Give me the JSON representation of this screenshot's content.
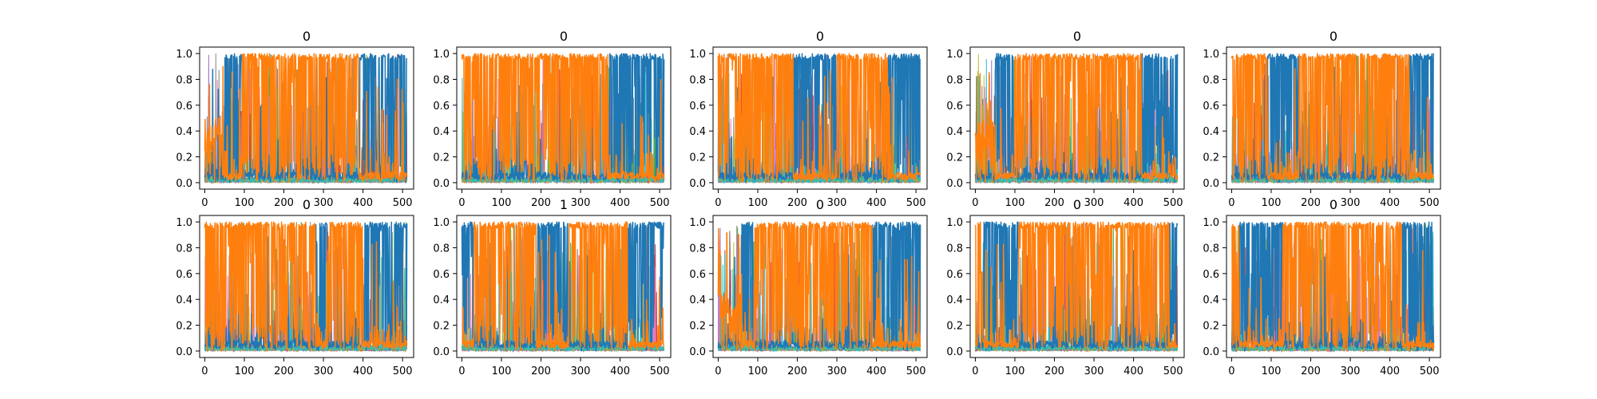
{
  "figure": {
    "background": "#ffffff",
    "axes_edge_color": "#000000"
  },
  "series_colors": [
    "#1f77b4",
    "#ff7f0e",
    "#2ca02c",
    "#d62728",
    "#9467bd",
    "#8c564b",
    "#e377c2",
    "#7f7f7f",
    "#bcbd22",
    "#17becf"
  ],
  "chart_data": [
    {
      "type": "line",
      "title": "0",
      "xlim": [
        -13,
        528
      ],
      "ylim": [
        -0.05,
        1.05
      ],
      "grid": false,
      "xticks": [
        "0",
        "100",
        "200",
        "300",
        "400",
        "500"
      ],
      "yticks": [
        "0.0",
        "0.2",
        "0.4",
        "0.6",
        "0.8",
        "1.0"
      ],
      "series": [
        {
          "color": "#1f77b4",
          "segments": [
            {
              "from": 50,
              "to": 95,
              "level": "high"
            },
            {
              "from": 390,
              "to": 512,
              "level": "high"
            }
          ]
        },
        {
          "color": "#ff7f0e",
          "segments": [
            {
              "from": 0,
              "to": 45,
              "level": "low-noisy"
            },
            {
              "from": 95,
              "to": 390,
              "level": "high"
            },
            {
              "from": 390,
              "to": 512,
              "level": "low"
            }
          ]
        }
      ]
    },
    {
      "type": "line",
      "title": "0",
      "xlim": [
        -13,
        528
      ],
      "ylim": [
        -0.05,
        1.05
      ],
      "grid": false,
      "xticks": [
        "0",
        "100",
        "200",
        "300",
        "400",
        "500"
      ],
      "yticks": [
        "0.0",
        "0.2",
        "0.4",
        "0.6",
        "0.8",
        "1.0"
      ],
      "series": [
        {
          "color": "#1f77b4",
          "segments": [
            {
              "from": 370,
              "to": 512,
              "level": "high"
            }
          ]
        },
        {
          "color": "#ff7f0e",
          "segments": [
            {
              "from": 0,
              "to": 370,
              "level": "high"
            },
            {
              "from": 370,
              "to": 512,
              "level": "low"
            }
          ]
        }
      ]
    },
    {
      "type": "line",
      "title": "0",
      "xlim": [
        -13,
        528
      ],
      "ylim": [
        -0.05,
        1.05
      ],
      "grid": false,
      "xticks": [
        "0",
        "100",
        "200",
        "300",
        "400",
        "500"
      ],
      "yticks": [
        "0.0",
        "0.2",
        "0.4",
        "0.6",
        "0.8",
        "1.0"
      ],
      "series": [
        {
          "color": "#1f77b4",
          "segments": [
            {
              "from": 190,
              "to": 300,
              "level": "high"
            },
            {
              "from": 430,
              "to": 512,
              "level": "high"
            }
          ]
        },
        {
          "color": "#ff7f0e",
          "segments": [
            {
              "from": 0,
              "to": 190,
              "level": "high"
            },
            {
              "from": 190,
              "to": 300,
              "level": "low"
            },
            {
              "from": 300,
              "to": 430,
              "level": "high"
            },
            {
              "from": 430,
              "to": 512,
              "level": "low"
            }
          ]
        }
      ]
    },
    {
      "type": "line",
      "title": "0",
      "xlim": [
        -13,
        528
      ],
      "ylim": [
        -0.05,
        1.05
      ],
      "grid": false,
      "xticks": [
        "0",
        "100",
        "200",
        "300",
        "400",
        "500"
      ],
      "yticks": [
        "0.0",
        "0.2",
        "0.4",
        "0.6",
        "0.8",
        "1.0"
      ],
      "series": [
        {
          "color": "#1f77b4",
          "segments": [
            {
              "from": 50,
              "to": 100,
              "level": "high"
            },
            {
              "from": 420,
              "to": 512,
              "level": "high"
            }
          ]
        },
        {
          "color": "#ff7f0e",
          "segments": [
            {
              "from": 0,
              "to": 50,
              "level": "low-noisy"
            },
            {
              "from": 100,
              "to": 420,
              "level": "high"
            },
            {
              "from": 420,
              "to": 512,
              "level": "low"
            }
          ]
        }
      ]
    },
    {
      "type": "line",
      "title": "0",
      "xlim": [
        -13,
        528
      ],
      "ylim": [
        -0.05,
        1.05
      ],
      "grid": false,
      "xticks": [
        "0",
        "100",
        "200",
        "300",
        "400",
        "500"
      ],
      "yticks": [
        "0.0",
        "0.2",
        "0.4",
        "0.6",
        "0.8",
        "1.0"
      ],
      "series": [
        {
          "color": "#1f77b4",
          "segments": [
            {
              "from": 90,
              "to": 170,
              "level": "high"
            },
            {
              "from": 450,
              "to": 512,
              "level": "high"
            }
          ]
        },
        {
          "color": "#ff7f0e",
          "segments": [
            {
              "from": 0,
              "to": 90,
              "level": "high"
            },
            {
              "from": 170,
              "to": 450,
              "level": "high"
            },
            {
              "from": 450,
              "to": 512,
              "level": "low"
            }
          ]
        }
      ]
    },
    {
      "type": "line",
      "title": "0",
      "xlim": [
        -13,
        528
      ],
      "ylim": [
        -0.05,
        1.05
      ],
      "grid": false,
      "xticks": [
        "0",
        "100",
        "200",
        "300",
        "400",
        "500"
      ],
      "yticks": [
        "0.0",
        "0.2",
        "0.4",
        "0.6",
        "0.8",
        "1.0"
      ],
      "series": [
        {
          "color": "#1f77b4",
          "segments": [
            {
              "from": 280,
              "to": 310,
              "level": "high"
            },
            {
              "from": 400,
              "to": 512,
              "level": "high"
            }
          ]
        },
        {
          "color": "#ff7f0e",
          "segments": [
            {
              "from": 0,
              "to": 280,
              "level": "high"
            },
            {
              "from": 310,
              "to": 400,
              "level": "high"
            },
            {
              "from": 400,
              "to": 512,
              "level": "low"
            }
          ]
        }
      ]
    },
    {
      "type": "line",
      "title": "1",
      "xlim": [
        -13,
        528
      ],
      "ylim": [
        -0.05,
        1.05
      ],
      "grid": false,
      "xticks": [
        "0",
        "100",
        "200",
        "300",
        "400",
        "500"
      ],
      "yticks": [
        "0.0",
        "0.2",
        "0.4",
        "0.6",
        "0.8",
        "1.0"
      ],
      "series": [
        {
          "color": "#1f77b4",
          "segments": [
            {
              "from": 0,
              "to": 30,
              "level": "high"
            },
            {
              "from": 190,
              "to": 270,
              "level": "high"
            },
            {
              "from": 420,
              "to": 512,
              "level": "high"
            }
          ]
        },
        {
          "color": "#ff7f0e",
          "segments": [
            {
              "from": 30,
              "to": 190,
              "level": "high"
            },
            {
              "from": 190,
              "to": 270,
              "level": "low"
            },
            {
              "from": 270,
              "to": 420,
              "level": "high"
            },
            {
              "from": 420,
              "to": 512,
              "level": "low"
            }
          ]
        }
      ]
    },
    {
      "type": "line",
      "title": "0",
      "xlim": [
        -13,
        528
      ],
      "ylim": [
        -0.05,
        1.05
      ],
      "grid": false,
      "xticks": [
        "0",
        "100",
        "200",
        "300",
        "400",
        "500"
      ],
      "yticks": [
        "0.0",
        "0.2",
        "0.4",
        "0.6",
        "0.8",
        "1.0"
      ],
      "series": [
        {
          "color": "#1f77b4",
          "segments": [
            {
              "from": 60,
              "to": 90,
              "level": "high"
            },
            {
              "from": 390,
              "to": 512,
              "level": "high"
            }
          ]
        },
        {
          "color": "#ff7f0e",
          "segments": [
            {
              "from": 0,
              "to": 60,
              "level": "low-noisy"
            },
            {
              "from": 90,
              "to": 390,
              "level": "high"
            },
            {
              "from": 390,
              "to": 512,
              "level": "low"
            }
          ]
        }
      ]
    },
    {
      "type": "line",
      "title": "0",
      "xlim": [
        -13,
        528
      ],
      "ylim": [
        -0.05,
        1.05
      ],
      "grid": false,
      "xticks": [
        "0",
        "100",
        "200",
        "300",
        "400",
        "500"
      ],
      "yticks": [
        "0.0",
        "0.2",
        "0.4",
        "0.6",
        "0.8",
        "1.0"
      ],
      "series": [
        {
          "color": "#1f77b4",
          "segments": [
            {
              "from": 20,
              "to": 110,
              "level": "high"
            },
            {
              "from": 490,
              "to": 512,
              "level": "high"
            }
          ]
        },
        {
          "color": "#ff7f0e",
          "segments": [
            {
              "from": 0,
              "to": 20,
              "level": "high"
            },
            {
              "from": 20,
              "to": 110,
              "level": "low"
            },
            {
              "from": 110,
              "to": 490,
              "level": "high"
            },
            {
              "from": 490,
              "to": 512,
              "level": "low"
            }
          ]
        }
      ]
    },
    {
      "type": "line",
      "title": "0",
      "xlim": [
        -13,
        528
      ],
      "ylim": [
        -0.05,
        1.05
      ],
      "grid": false,
      "xticks": [
        "0",
        "100",
        "200",
        "300",
        "400",
        "500"
      ],
      "yticks": [
        "0.0",
        "0.2",
        "0.4",
        "0.6",
        "0.8",
        "1.0"
      ],
      "series": [
        {
          "color": "#1f77b4",
          "segments": [
            {
              "from": 20,
              "to": 130,
              "level": "high"
            },
            {
              "from": 430,
              "to": 512,
              "level": "high"
            }
          ]
        },
        {
          "color": "#ff7f0e",
          "segments": [
            {
              "from": 0,
              "to": 20,
              "level": "high"
            },
            {
              "from": 20,
              "to": 130,
              "level": "low"
            },
            {
              "from": 130,
              "to": 430,
              "level": "high"
            },
            {
              "from": 430,
              "to": 512,
              "level": "low"
            }
          ]
        }
      ]
    }
  ]
}
